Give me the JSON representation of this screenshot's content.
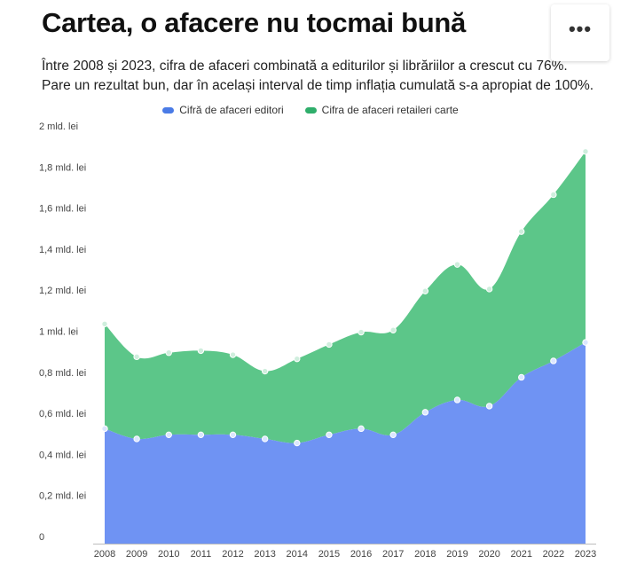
{
  "header": {
    "title": "Cartea, o afacere nu tocmai bună",
    "subtitle": "Între 2008 și 2023, cifra de afaceri combinată a editurilor și librăriilor a crescut cu 76%. Pare un rezultat bun, dar în același interval de timp inflația cumulată s-a apropiat de 100%."
  },
  "menu": {
    "icon": "more-horizontal-icon",
    "label": "•••"
  },
  "legend": [
    {
      "label": "Cifră de afaceri editori",
      "color": "#4a7be6"
    },
    {
      "label": "Cifra de afaceri retaileri carte",
      "color": "#2fae6b"
    }
  ],
  "chart_data": {
    "type": "area",
    "stacked": true,
    "x": [
      "2008",
      "2009",
      "2010",
      "2011",
      "2012",
      "2013",
      "2014",
      "2015",
      "2016",
      "2017",
      "2018",
      "2019",
      "2020",
      "2021",
      "2022",
      "2023"
    ],
    "series": [
      {
        "name": "Cifră de afaceri editori",
        "color": "#6f93f3",
        "values": [
          0.56,
          0.51,
          0.53,
          0.53,
          0.53,
          0.51,
          0.49,
          0.53,
          0.56,
          0.53,
          0.64,
          0.7,
          0.67,
          0.81,
          0.89,
          0.98
        ]
      },
      {
        "name": "Cifra de afaceri retaileri carte",
        "color": "#5cc689",
        "values": [
          0.51,
          0.4,
          0.4,
          0.41,
          0.39,
          0.33,
          0.41,
          0.44,
          0.47,
          0.51,
          0.59,
          0.66,
          0.57,
          0.71,
          0.81,
          0.93
        ]
      }
    ],
    "ylim": [
      0,
      2
    ],
    "yticks": [
      {
        "value": 0,
        "label": "0"
      },
      {
        "value": 0.2,
        "label": "0,2 mld. lei"
      },
      {
        "value": 0.4,
        "label": "0,4 mld. lei"
      },
      {
        "value": 0.6,
        "label": "0,6 mld. lei"
      },
      {
        "value": 0.8,
        "label": "0,8 mld. lei"
      },
      {
        "value": 1.0,
        "label": "1 mld. lei"
      },
      {
        "value": 1.2,
        "label": "1,2 mld. lei"
      },
      {
        "value": 1.4,
        "label": "1,4 mld. lei"
      },
      {
        "value": 1.6,
        "label": "1,6 mld. lei"
      },
      {
        "value": 1.8,
        "label": "1,8 mld. lei"
      },
      {
        "value": 2.0,
        "label": "2 mld. lei"
      }
    ],
    "grid": false,
    "legend_position": "top-center"
  }
}
